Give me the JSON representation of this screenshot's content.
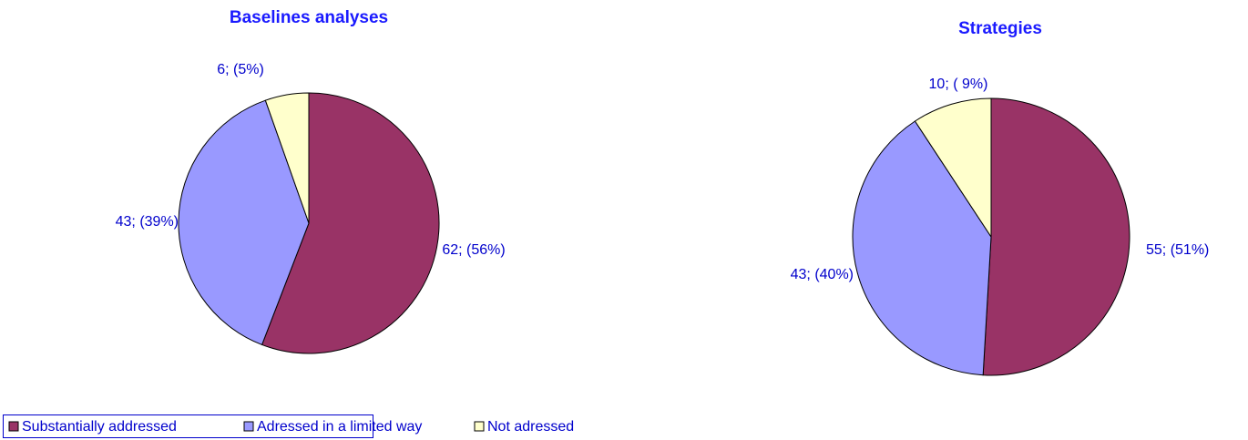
{
  "chart_data": [
    {
      "type": "pie",
      "title": "Baselines analyses",
      "categories": [
        "Substantially addressed",
        "Adressed in a limited way",
        "Not adressed"
      ],
      "values": [
        62,
        43,
        6
      ],
      "value_labels": [
        "62; (56%)",
        "43; (39%)",
        "6; (5%)"
      ],
      "colors": [
        "#993366",
        "#9999FF",
        "#FFFFCC"
      ],
      "legend": "bottom-left"
    },
    {
      "type": "pie",
      "title": "Strategies",
      "values": [
        55,
        43,
        10
      ],
      "value_labels": [
        "55; (51%)",
        "43; (40%)",
        "10; ( 9%)"
      ],
      "colors": [
        "#993366",
        "#9999FF",
        "#FFFFCC"
      ]
    }
  ]
}
